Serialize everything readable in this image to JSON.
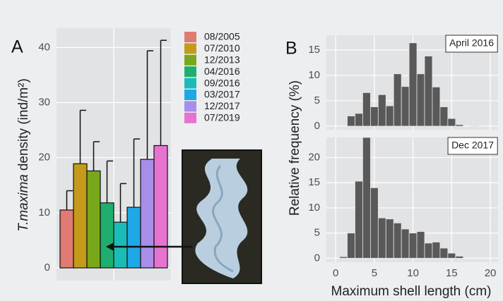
{
  "chart_data": [
    {
      "type": "bar",
      "panel": "A",
      "ylabel": {
        "italic": "T.maxima",
        "rest": "density (ind/m²)"
      },
      "categories": [
        "08/2005",
        "07/2010",
        "12/2013",
        "04/2016",
        "09/2016",
        "03/2017",
        "12/2017",
        "07/2019"
      ],
      "values": [
        10.5,
        18.9,
        17.6,
        11.8,
        8.3,
        11.0,
        19.7,
        22.2
      ],
      "errors": [
        3.5,
        9.7,
        5.3,
        7.6,
        7.0,
        12.4,
        19.7,
        19.1
      ],
      "colors": [
        "#e07b73",
        "#c49a1a",
        "#78a81a",
        "#1fae6e",
        "#1bbcb8",
        "#1ea8e6",
        "#a98ee8",
        "#e673d0"
      ],
      "ylim": [
        -2.3,
        43.5
      ],
      "yticks": [
        0,
        10,
        20,
        30,
        40
      ],
      "grid": true
    },
    {
      "type": "histogram",
      "panel": "B",
      "title": "April 2016",
      "ylabel": "Relative frequency (%)",
      "bins": [
        0.5,
        1.5,
        2.5,
        3.5,
        4.5,
        5.5,
        6.5,
        7.5,
        8.5,
        9.5,
        10.5,
        11.5,
        12.5,
        13.5,
        14.5,
        15.5,
        16.5,
        17.5,
        18.5,
        19.5
      ],
      "counts": [
        0,
        2,
        2.5,
        6.6,
        3.8,
        6.2,
        4,
        10.3,
        7.8,
        16.4,
        10.3,
        13.8,
        7.7,
        3.8,
        1.5,
        0.3,
        0,
        0.1,
        0
      ],
      "color": "#595959",
      "xlim": [
        -1.2,
        21
      ],
      "xticks": [
        0,
        5,
        10,
        15,
        20
      ],
      "ylim": [
        -0.7,
        17.9
      ],
      "yticks": [
        0,
        5,
        10,
        15
      ],
      "grid": true
    },
    {
      "type": "histogram",
      "title": "Dec 2017",
      "xlabel": "Maximum shell length (cm)",
      "bins": [
        0.5,
        1.5,
        2.5,
        3.5,
        4.5,
        5.5,
        6.5,
        7.5,
        8.5,
        9.5,
        10.5,
        11.5,
        12.5,
        13.5,
        14.5,
        15.5,
        16.5,
        17.5,
        18.5,
        19.5
      ],
      "counts": [
        0.3,
        5,
        15.3,
        24,
        14,
        8,
        7.8,
        7,
        5.8,
        5,
        5.3,
        3,
        3.2,
        2,
        1,
        0.4,
        0,
        0,
        0
      ],
      "color": "#595959",
      "xlim": [
        -1.2,
        21
      ],
      "xticks": [
        0,
        5,
        10,
        15,
        20
      ],
      "ylim": [
        -0.8,
        24
      ],
      "yticks": [
        0,
        5,
        10,
        15,
        20
      ],
      "grid": true
    }
  ]
}
